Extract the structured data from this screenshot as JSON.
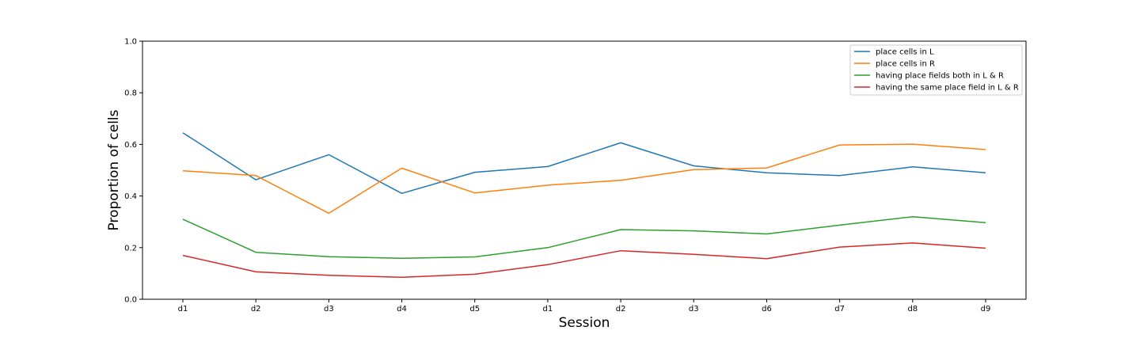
{
  "chart_data": {
    "type": "line",
    "title": "",
    "xlabel": "Session",
    "ylabel": "Proportion of cells",
    "categories": [
      "d1",
      "d2",
      "d3",
      "d4",
      "d5",
      "d1",
      "d2",
      "d3",
      "d6",
      "d7",
      "d8",
      "d9"
    ],
    "ylim": [
      0.0,
      1.0
    ],
    "yticks": [
      "0.0",
      "0.2",
      "0.4",
      "0.6",
      "0.8",
      "1.0"
    ],
    "grid": false,
    "legend_position": "top-right",
    "series": [
      {
        "name": "place cells in L",
        "color": "#1f77b4",
        "values": [
          0.645,
          0.463,
          0.56,
          0.41,
          0.492,
          0.514,
          0.606,
          0.517,
          0.49,
          0.479,
          0.513,
          0.49
        ]
      },
      {
        "name": "place cells in R",
        "color": "#ff7f0e",
        "values": [
          0.498,
          0.479,
          0.333,
          0.508,
          0.412,
          0.442,
          0.461,
          0.502,
          0.509,
          0.598,
          0.601,
          0.58
        ]
      },
      {
        "name": "having place fields both in L & R",
        "color": "#2ca02c",
        "values": [
          0.31,
          0.182,
          0.165,
          0.159,
          0.164,
          0.2,
          0.27,
          0.265,
          0.253,
          0.287,
          0.32,
          0.297
        ]
      },
      {
        "name": "having the same place field in L & R",
        "color": "#d62728",
        "values": [
          0.17,
          0.106,
          0.093,
          0.085,
          0.097,
          0.134,
          0.188,
          0.174,
          0.157,
          0.202,
          0.218,
          0.198
        ]
      }
    ]
  }
}
